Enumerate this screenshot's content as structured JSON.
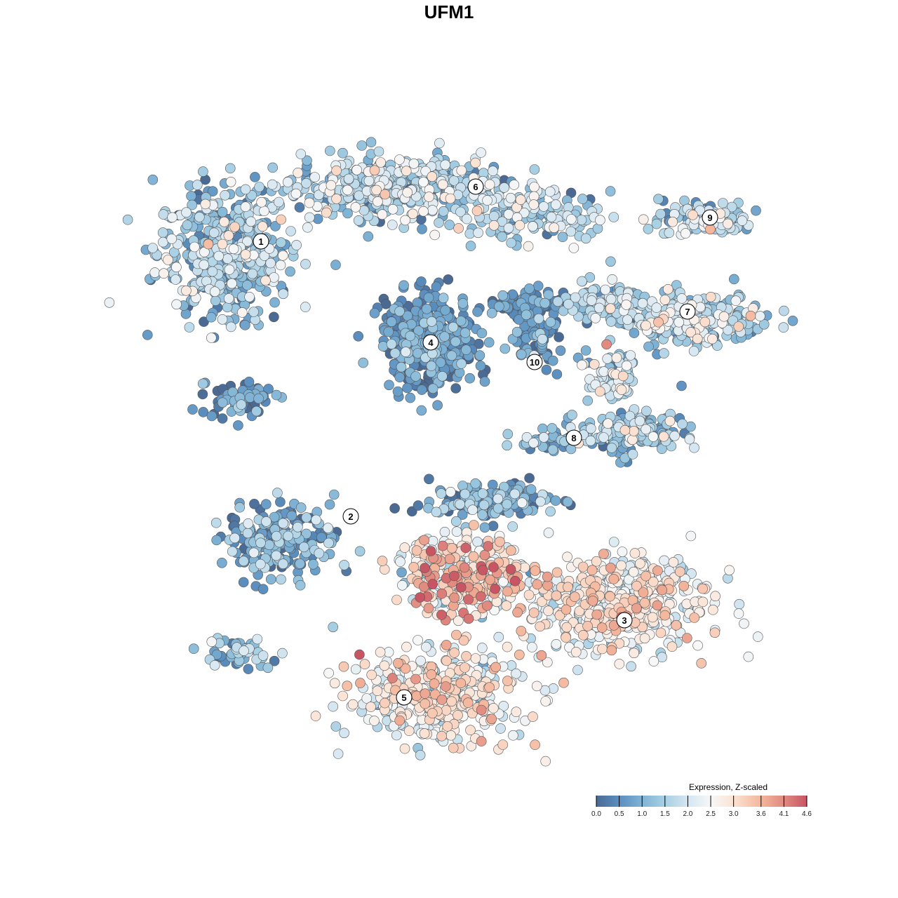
{
  "chart_data": {
    "type": "scatter",
    "title": "UFM1",
    "xlabel": "",
    "ylabel": "",
    "grid": false,
    "axes_visible": false,
    "legend": {
      "title": "Expression, Z-scaled",
      "placement": "bottom-right",
      "ticks": [
        "0.0",
        "0.5",
        "1.0",
        "1.5",
        "2.0",
        "2.5",
        "3.0",
        "3.6",
        "4.1",
        "4.6"
      ],
      "range": [
        0,
        4.6
      ]
    },
    "colorscale": [
      {
        "v": 0.0,
        "c": "#4a6a94"
      },
      {
        "v": 0.5,
        "c": "#5a8fc0"
      },
      {
        "v": 1.0,
        "c": "#7fb3d5"
      },
      {
        "v": 1.5,
        "c": "#a8d0e4"
      },
      {
        "v": 2.0,
        "c": "#d4e6f1"
      },
      {
        "v": 2.5,
        "c": "#f7f7f7"
      },
      {
        "v": 3.0,
        "c": "#fbe3d4"
      },
      {
        "v": 3.6,
        "c": "#f4b69c"
      },
      {
        "v": 4.1,
        "c": "#e08a80"
      },
      {
        "v": 4.6,
        "c": "#c85563"
      }
    ],
    "clusters": [
      {
        "label": "1",
        "label_pos": [
          -6.7,
          7.4
        ],
        "blobs": [
          {
            "cx": -8,
            "cy": 7,
            "sx": 2.2,
            "sy": 2.1,
            "n": 450,
            "mean": 1.3,
            "sd": 0.7
          },
          {
            "cx": -7.5,
            "cy": 1.8,
            "sx": 1.2,
            "sy": 0.6,
            "n": 60,
            "mean": 0.5,
            "sd": 0.5
          }
        ]
      },
      {
        "label": "6",
        "label_pos": [
          0.95,
          9.35
        ],
        "blobs": [
          {
            "cx": -2,
            "cy": 9.3,
            "sx": 3.5,
            "sy": 1.0,
            "n": 450,
            "mean": 1.5,
            "sd": 0.7
          },
          {
            "cx": 3,
            "cy": 8.3,
            "sx": 2.5,
            "sy": 0.8,
            "n": 150,
            "mean": 1.4,
            "sd": 0.7
          }
        ]
      },
      {
        "label": "9",
        "label_pos": [
          9.3,
          8.25
        ],
        "blobs": [
          {
            "cx": 9.2,
            "cy": 8.2,
            "sx": 1.5,
            "sy": 0.6,
            "n": 120,
            "mean": 1.6,
            "sd": 0.7
          }
        ]
      },
      {
        "label": "7",
        "label_pos": [
          8.5,
          4.9
        ],
        "blobs": [
          {
            "cx": 8.5,
            "cy": 4.6,
            "sx": 2.5,
            "sy": 0.8,
            "n": 250,
            "mean": 1.6,
            "sd": 0.7
          },
          {
            "cx": 5.5,
            "cy": 5.3,
            "sx": 1.3,
            "sy": 0.7,
            "n": 80,
            "mean": 1.3,
            "sd": 0.7
          }
        ]
      },
      {
        "label": "4",
        "label_pos": [
          -0.65,
          3.8
        ],
        "blobs": [
          {
            "cx": -0.7,
            "cy": 3.8,
            "sx": 1.5,
            "sy": 1.5,
            "n": 400,
            "mean": 0.5,
            "sd": 0.5
          }
        ]
      },
      {
        "label": "10",
        "label_pos": [
          3.05,
          3.1
        ],
        "blobs": [
          {
            "cx": 3.2,
            "cy": 4.2,
            "sx": 0.8,
            "sy": 1.0,
            "n": 90,
            "mean": 0.6,
            "sd": 0.5
          },
          {
            "cx": 2.5,
            "cy": 5.2,
            "sx": 1.5,
            "sy": 0.4,
            "n": 60,
            "mean": 0.4,
            "sd": 0.4
          }
        ]
      },
      {
        "label": "8",
        "label_pos": [
          4.45,
          0.4
        ],
        "blobs": [
          {
            "cx": 6.5,
            "cy": 0.6,
            "sx": 1.7,
            "sy": 0.7,
            "n": 180,
            "mean": 1.2,
            "sd": 0.7
          },
          {
            "cx": 5.8,
            "cy": 2.5,
            "sx": 0.8,
            "sy": 0.8,
            "n": 70,
            "mean": 1.8,
            "sd": 0.7
          },
          {
            "cx": 3.5,
            "cy": 0.3,
            "sx": 1.2,
            "sy": 0.3,
            "n": 40,
            "mean": 0.8,
            "sd": 0.6
          }
        ]
      },
      {
        "label": "2",
        "label_pos": [
          -3.5,
          -2.4
        ],
        "blobs": [
          {
            "cx": -6,
            "cy": -3.2,
            "sx": 1.8,
            "sy": 1.2,
            "n": 200,
            "mean": 0.9,
            "sd": 0.6
          },
          {
            "cx": -7.5,
            "cy": -7.2,
            "sx": 1.2,
            "sy": 0.5,
            "n": 50,
            "mean": 1.0,
            "sd": 0.7
          }
        ]
      },
      {
        "label": "3",
        "label_pos": [
          6.25,
          -6.1
        ],
        "blobs": [
          {
            "cx": 6,
            "cy": -5.5,
            "sx": 3.0,
            "sy": 1.6,
            "n": 500,
            "mean": 2.5,
            "sd": 0.6
          },
          {
            "cx": 0.5,
            "cy": -4.5,
            "sx": 2.2,
            "sy": 1.3,
            "n": 350,
            "mean": 2.8,
            "sd": 0.9
          },
          {
            "cx": 1.5,
            "cy": -1.8,
            "sx": 2.0,
            "sy": 0.6,
            "n": 150,
            "mean": 0.8,
            "sd": 0.6
          }
        ]
      },
      {
        "label": "5",
        "label_pos": [
          -1.6,
          -8.85
        ],
        "blobs": [
          {
            "cx": -0.5,
            "cy": -8.8,
            "sx": 2.8,
            "sy": 1.4,
            "n": 450,
            "mean": 2.5,
            "sd": 0.6
          }
        ]
      }
    ]
  }
}
